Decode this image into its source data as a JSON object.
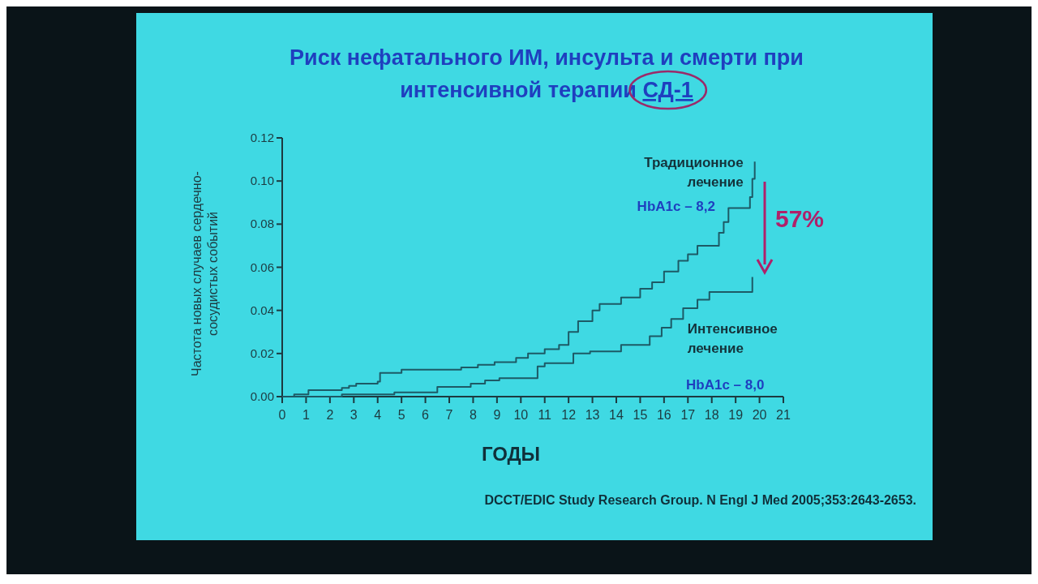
{
  "chart_data": {
    "type": "step",
    "title": "Риск нефатального ИМ, инсульта и смерти при\nинтенсивной терапии СД-1",
    "xlabel": "ГОДЫ",
    "ylabel": "Частота новых случаев сердечно-\nсосудистых событий",
    "xlim": [
      0,
      21
    ],
    "ylim": [
      0,
      0.12
    ],
    "xticks": [
      0,
      1,
      2,
      3,
      4,
      5,
      6,
      7,
      8,
      9,
      10,
      11,
      12,
      13,
      14,
      15,
      16,
      17,
      18,
      19,
      20,
      21
    ],
    "yticks": [
      {
        "value": 0,
        "label": "0.00"
      },
      {
        "value": 0.02,
        "label": "0.02"
      },
      {
        "value": 0.04,
        "label": "0.04"
      },
      {
        "value": 0.06,
        "label": "0.06"
      },
      {
        "value": 0.08,
        "label": "0.08"
      },
      {
        "value": 0.1,
        "label": "0.10"
      },
      {
        "value": 0.12,
        "label": "0.12"
      }
    ],
    "grid": false,
    "marker": "none",
    "line_style": "solid",
    "series": [
      {
        "name": "Традиционное лечение",
        "color": "#1d5a66",
        "x": [
          0,
          0.5,
          1.1,
          2.5,
          2.8,
          3.1,
          4.0,
          4.1,
          5.0,
          7.5,
          8.2,
          8.9,
          9.8,
          10.3,
          11.0,
          11.6,
          12.0,
          12.4,
          13.0,
          13.3,
          14.2,
          15.0,
          15.5,
          16.0,
          16.6,
          17.0,
          17.4,
          18.3,
          18.5,
          18.7,
          19.6,
          19.7,
          19.8
        ],
        "values": [
          0,
          0.001,
          0.003,
          0.004,
          0.005,
          0.006,
          0.007,
          0.011,
          0.0125,
          0.0135,
          0.0148,
          0.016,
          0.018,
          0.02,
          0.022,
          0.024,
          0.03,
          0.035,
          0.04,
          0.043,
          0.046,
          0.05,
          0.053,
          0.058,
          0.063,
          0.066,
          0.07,
          0.076,
          0.081,
          0.0875,
          0.0925,
          0.101,
          0.109
        ]
      },
      {
        "name": "Интенсивное лечение",
        "color": "#1d5a66",
        "x": [
          0,
          2.5,
          4.7,
          6.5,
          7.9,
          8.5,
          9.1,
          10.7,
          11.0,
          12.2,
          12.9,
          14.2,
          15.4,
          15.9,
          16.3,
          16.8,
          17.4,
          17.9,
          19.6,
          19.7
        ],
        "values": [
          0,
          0.001,
          0.002,
          0.0045,
          0.006,
          0.0075,
          0.0086,
          0.014,
          0.0155,
          0.02,
          0.021,
          0.024,
          0.028,
          0.032,
          0.036,
          0.041,
          0.045,
          0.0485,
          0.0485,
          0.0555
        ]
      }
    ],
    "annotations": [
      "HbA1c – 8,2",
      "HbA1c – 8,0",
      "57%",
      "DCCT/EDIC Study Research Group. N Engl J Med 2005;353:2643-2653."
    ]
  }
}
